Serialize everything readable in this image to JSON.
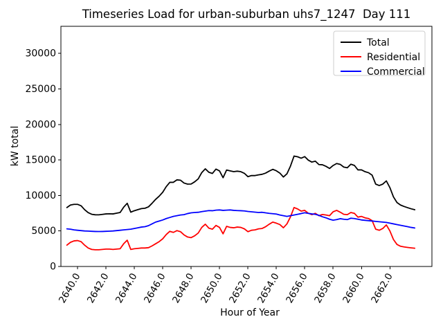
{
  "window": {
    "background": "#ffffff"
  },
  "chart_data": {
    "type": "line",
    "title": "Timeseries Load for urban-suburban uhs7_1247  Day 111",
    "xlabel": "Hour of Year",
    "ylabel": "kW total",
    "xlim": [
      2638.83,
      2664.96
    ],
    "ylim": [
      0,
      33820
    ],
    "xticks": [
      2640.0,
      2642.0,
      2644.0,
      2646.0,
      2648.0,
      2650.0,
      2652.0,
      2654.0,
      2656.0,
      2658.0,
      2660.0,
      2662.0
    ],
    "yticks": [
      0,
      5000,
      10000,
      15000,
      20000,
      25000,
      30000
    ],
    "xtick_decimals": 1,
    "grid": false,
    "legend_position": "upper right",
    "axis_color": "#000000",
    "legend_border_color": "#cccccc",
    "x": [
      2639.25,
      2639.5,
      2639.75,
      2640,
      2640.25,
      2640.5,
      2640.75,
      2641,
      2641.25,
      2641.5,
      2641.75,
      2642,
      2642.25,
      2642.5,
      2642.75,
      2643,
      2643.25,
      2643.5,
      2643.75,
      2644,
      2644.25,
      2644.5,
      2644.75,
      2645,
      2645.25,
      2645.5,
      2645.75,
      2646,
      2646.25,
      2646.5,
      2646.75,
      2647,
      2647.25,
      2647.5,
      2647.75,
      2648,
      2648.25,
      2648.5,
      2648.75,
      2649,
      2649.25,
      2649.5,
      2649.75,
      2650,
      2650.25,
      2650.5,
      2650.75,
      2651,
      2651.25,
      2651.5,
      2651.75,
      2652,
      2652.25,
      2652.5,
      2652.75,
      2653,
      2653.25,
      2653.5,
      2653.75,
      2654,
      2654.25,
      2654.5,
      2654.75,
      2655,
      2655.25,
      2655.5,
      2655.75,
      2656,
      2656.25,
      2656.5,
      2656.75,
      2657,
      2657.25,
      2657.5,
      2657.75,
      2658,
      2658.25,
      2658.5,
      2658.75,
      2659,
      2659.25,
      2659.5,
      2659.75,
      2660,
      2660.25,
      2660.5,
      2660.75,
      2661,
      2661.25,
      2661.5,
      2661.75,
      2662,
      2662.25,
      2662.5,
      2662.75,
      2663,
      2663.25,
      2663.5,
      2663.75
    ],
    "series": [
      {
        "name": "Total",
        "color": "#000000",
        "values": [
          8300,
          8650,
          8750,
          8750,
          8550,
          8000,
          7580,
          7350,
          7280,
          7270,
          7330,
          7400,
          7420,
          7400,
          7500,
          7600,
          8350,
          8900,
          7650,
          7850,
          8000,
          8150,
          8200,
          8400,
          8900,
          9450,
          9900,
          10450,
          11250,
          11850,
          11850,
          12200,
          12150,
          11750,
          11600,
          11610,
          11920,
          12340,
          13220,
          13750,
          13270,
          13100,
          13710,
          13460,
          12500,
          13580,
          13460,
          13350,
          13420,
          13350,
          13120,
          12650,
          12800,
          12800,
          12900,
          12980,
          13150,
          13430,
          13680,
          13480,
          13150,
          12600,
          13050,
          14150,
          15550,
          15450,
          15250,
          15470,
          14980,
          14700,
          14830,
          14350,
          14320,
          14100,
          13800,
          14220,
          14500,
          14380,
          14000,
          13900,
          14400,
          14230,
          13600,
          13600,
          13350,
          13200,
          12850,
          11600,
          11400,
          11600,
          12050,
          11100,
          9800,
          9000,
          8650,
          8450,
          8280,
          8120,
          7990
        ]
      },
      {
        "name": "Residential",
        "color": "#ff0000",
        "values": [
          3000,
          3400,
          3600,
          3650,
          3500,
          3000,
          2600,
          2400,
          2350,
          2350,
          2400,
          2450,
          2450,
          2400,
          2450,
          2500,
          3200,
          3700,
          2400,
          2500,
          2550,
          2600,
          2600,
          2650,
          2900,
          3200,
          3500,
          3900,
          4500,
          4950,
          4800,
          5050,
          4900,
          4450,
          4150,
          4060,
          4320,
          4710,
          5500,
          5950,
          5400,
          5250,
          5780,
          5500,
          4600,
          5650,
          5500,
          5450,
          5550,
          5500,
          5300,
          4900,
          5100,
          5150,
          5300,
          5350,
          5600,
          5950,
          6250,
          6100,
          5900,
          5450,
          6000,
          7000,
          8300,
          8100,
          7800,
          7900,
          7500,
          7300,
          7480,
          7150,
          7320,
          7250,
          7150,
          7700,
          7900,
          7650,
          7350,
          7300,
          7600,
          7480,
          6950,
          7050,
          6850,
          6750,
          6450,
          5250,
          5100,
          5350,
          5850,
          5000,
          3800,
          3100,
          2850,
          2750,
          2680,
          2620,
          2570
        ]
      },
      {
        "name": "Commercial",
        "color": "#0000ff",
        "values": [
          5300,
          5250,
          5150,
          5100,
          5050,
          5000,
          4980,
          4950,
          4930,
          4920,
          4930,
          4950,
          4970,
          5000,
          5050,
          5100,
          5150,
          5200,
          5250,
          5350,
          5450,
          5550,
          5600,
          5750,
          6000,
          6250,
          6400,
          6550,
          6750,
          6900,
          7050,
          7150,
          7250,
          7300,
          7450,
          7550,
          7600,
          7630,
          7720,
          7800,
          7870,
          7850,
          7930,
          7960,
          7900,
          7930,
          7960,
          7900,
          7870,
          7850,
          7820,
          7750,
          7700,
          7650,
          7600,
          7630,
          7550,
          7480,
          7430,
          7380,
          7250,
          7150,
          7050,
          7150,
          7250,
          7350,
          7450,
          7570,
          7480,
          7400,
          7350,
          7200,
          7000,
          6850,
          6650,
          6520,
          6600,
          6730,
          6650,
          6600,
          6800,
          6750,
          6650,
          6550,
          6500,
          6450,
          6400,
          6350,
          6300,
          6250,
          6200,
          6100,
          6000,
          5900,
          5800,
          5700,
          5600,
          5500,
          5420
        ]
      }
    ]
  }
}
